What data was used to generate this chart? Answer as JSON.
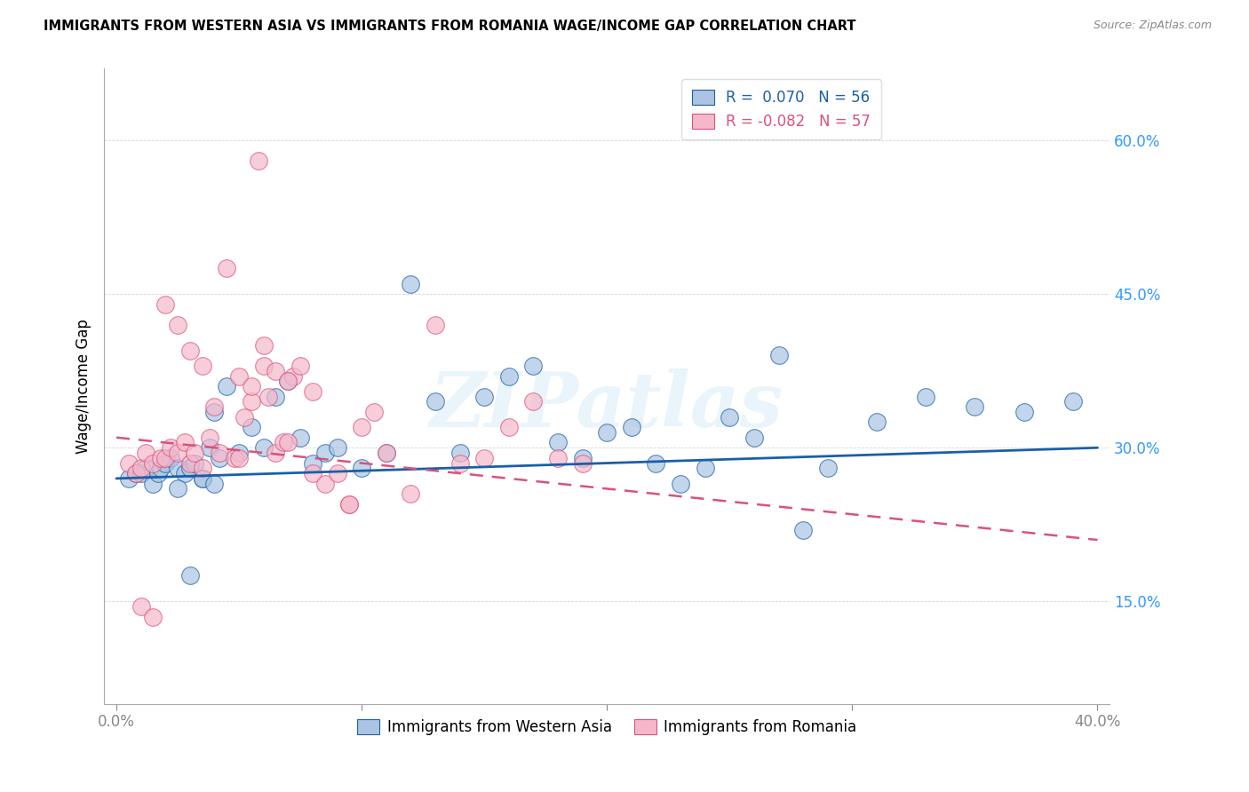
{
  "title": "IMMIGRANTS FROM WESTERN ASIA VS IMMIGRANTS FROM ROMANIA WAGE/INCOME GAP CORRELATION CHART",
  "source": "Source: ZipAtlas.com",
  "ylabel": "Wage/Income Gap",
  "ytick_labels": [
    "15.0%",
    "30.0%",
    "45.0%",
    "60.0%"
  ],
  "ytick_values": [
    0.15,
    0.3,
    0.45,
    0.6
  ],
  "xlim": [
    -0.005,
    0.405
  ],
  "ylim": [
    0.05,
    0.67
  ],
  "legend_r1": "R =  0.070   N = 56",
  "legend_r2": "R = -0.082   N = 57",
  "color_blue": "#aac4e2",
  "color_pink": "#f5b8cb",
  "trendline_blue": "#1a5fa8",
  "trendline_pink": "#d9527a",
  "watermark": "ZIPatlas",
  "blue_scatter_x": [
    0.005,
    0.008,
    0.01,
    0.012,
    0.015,
    0.017,
    0.018,
    0.02,
    0.022,
    0.025,
    0.028,
    0.03,
    0.032,
    0.035,
    0.038,
    0.04,
    0.042,
    0.045,
    0.05,
    0.055,
    0.06,
    0.065,
    0.07,
    0.075,
    0.08,
    0.085,
    0.09,
    0.1,
    0.11,
    0.12,
    0.13,
    0.14,
    0.15,
    0.16,
    0.17,
    0.18,
    0.19,
    0.2,
    0.21,
    0.22,
    0.23,
    0.24,
    0.25,
    0.27,
    0.29,
    0.31,
    0.33,
    0.35,
    0.37,
    0.39,
    0.025,
    0.03,
    0.035,
    0.04,
    0.26,
    0.28
  ],
  "blue_scatter_y": [
    0.27,
    0.275,
    0.275,
    0.28,
    0.265,
    0.275,
    0.28,
    0.285,
    0.29,
    0.28,
    0.275,
    0.28,
    0.285,
    0.27,
    0.3,
    0.335,
    0.29,
    0.36,
    0.295,
    0.32,
    0.3,
    0.35,
    0.365,
    0.31,
    0.285,
    0.295,
    0.3,
    0.28,
    0.295,
    0.46,
    0.345,
    0.295,
    0.35,
    0.37,
    0.38,
    0.305,
    0.29,
    0.315,
    0.32,
    0.285,
    0.265,
    0.28,
    0.33,
    0.39,
    0.28,
    0.325,
    0.35,
    0.34,
    0.335,
    0.345,
    0.26,
    0.175,
    0.27,
    0.265,
    0.31,
    0.22
  ],
  "pink_scatter_x": [
    0.005,
    0.008,
    0.01,
    0.012,
    0.015,
    0.018,
    0.02,
    0.022,
    0.025,
    0.028,
    0.03,
    0.032,
    0.035,
    0.038,
    0.04,
    0.042,
    0.045,
    0.048,
    0.05,
    0.052,
    0.055,
    0.058,
    0.06,
    0.062,
    0.065,
    0.068,
    0.07,
    0.072,
    0.075,
    0.08,
    0.085,
    0.09,
    0.095,
    0.1,
    0.105,
    0.11,
    0.12,
    0.13,
    0.14,
    0.15,
    0.16,
    0.17,
    0.18,
    0.19,
    0.01,
    0.015,
    0.02,
    0.025,
    0.03,
    0.035,
    0.05,
    0.055,
    0.06,
    0.065,
    0.07,
    0.08,
    0.095
  ],
  "pink_scatter_y": [
    0.285,
    0.275,
    0.28,
    0.295,
    0.285,
    0.29,
    0.29,
    0.3,
    0.295,
    0.305,
    0.285,
    0.295,
    0.28,
    0.31,
    0.34,
    0.295,
    0.475,
    0.29,
    0.29,
    0.33,
    0.345,
    0.58,
    0.38,
    0.35,
    0.295,
    0.305,
    0.305,
    0.37,
    0.38,
    0.275,
    0.265,
    0.275,
    0.245,
    0.32,
    0.335,
    0.295,
    0.255,
    0.42,
    0.285,
    0.29,
    0.32,
    0.345,
    0.29,
    0.285,
    0.145,
    0.135,
    0.44,
    0.42,
    0.395,
    0.38,
    0.37,
    0.36,
    0.4,
    0.375,
    0.365,
    0.355,
    0.245
  ],
  "blue_trend_x": [
    0.0,
    0.4
  ],
  "blue_trend_y": [
    0.27,
    0.3
  ],
  "pink_trend_x": [
    0.0,
    0.4
  ],
  "pink_trend_y": [
    0.31,
    0.21
  ]
}
